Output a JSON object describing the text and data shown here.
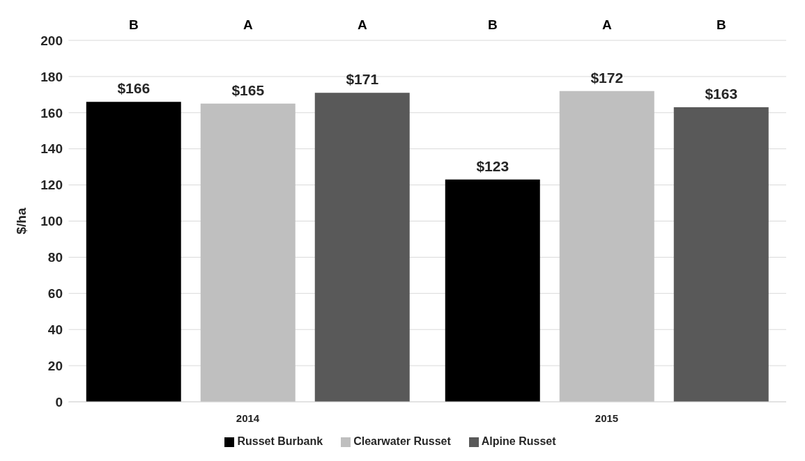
{
  "chart_data": {
    "type": "bar",
    "ylabel": "$/ha",
    "categories": [
      "2014",
      "2015"
    ],
    "series": [
      {
        "name": "Russet Burbank",
        "color": "#000000",
        "values": [
          166,
          123
        ],
        "value_labels": [
          "$166",
          "$123"
        ]
      },
      {
        "name": "Clearwater Russet",
        "color": "#bfbfbf",
        "values": [
          165,
          172
        ],
        "value_labels": [
          "$165",
          "$172"
        ]
      },
      {
        "name": "Alpine Russet",
        "color": "#595959",
        "values": [
          171,
          163
        ],
        "value_labels": [
          "$171",
          "$163"
        ]
      }
    ],
    "annotations": [
      "B",
      "A",
      "A",
      "B",
      "A",
      "B"
    ],
    "ylim": [
      0,
      200
    ],
    "yticks": [
      0,
      20,
      40,
      60,
      80,
      100,
      120,
      140,
      160,
      180,
      200
    ],
    "grid": "y",
    "legend": "bottom"
  }
}
